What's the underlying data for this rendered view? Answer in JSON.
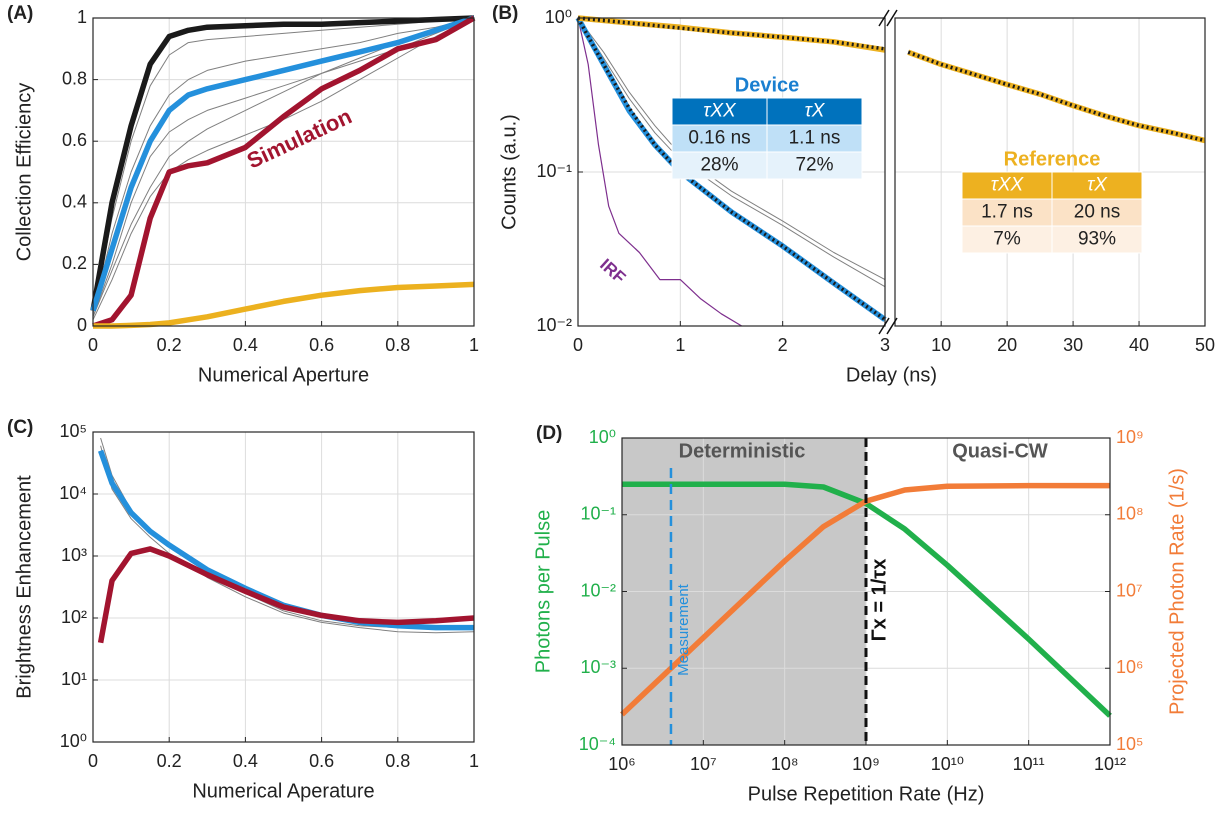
{
  "chart_data": [
    {
      "type": "line",
      "panel_label": "(A)",
      "x_label": "Numerical Aperture",
      "y_label": "Collection Efficiency",
      "xlim": [
        0,
        1
      ],
      "xticks": [
        0,
        0.2,
        0.4,
        0.6,
        0.8,
        1
      ],
      "ylim": [
        0,
        1
      ],
      "yticks": [
        0,
        0.2,
        0.4,
        0.6,
        0.8,
        1
      ],
      "grid": true,
      "annotations": [
        "Simulation"
      ],
      "series": [
        {
          "color": "#808080",
          "x": [
            0,
            0.05,
            0.1,
            0.15,
            0.2,
            0.25,
            0.3,
            0.4,
            0.5,
            0.6,
            0.7,
            0.8,
            0.9,
            1
          ],
          "values": [
            0.04,
            0.35,
            0.6,
            0.78,
            0.88,
            0.92,
            0.93,
            0.94,
            0.95,
            0.96,
            0.97,
            0.98,
            0.99,
            1
          ]
        },
        {
          "color": "#808080",
          "x": [
            0,
            0.05,
            0.1,
            0.15,
            0.2,
            0.25,
            0.3,
            0.4,
            0.5,
            0.6,
            0.7,
            0.8,
            0.9,
            1
          ],
          "values": [
            0.03,
            0.2,
            0.4,
            0.55,
            0.63,
            0.67,
            0.7,
            0.74,
            0.78,
            0.82,
            0.86,
            0.9,
            0.95,
            1
          ]
        },
        {
          "color": "#808080",
          "x": [
            0,
            0.05,
            0.1,
            0.15,
            0.2,
            0.25,
            0.3,
            0.4,
            0.5,
            0.6,
            0.7,
            0.8,
            0.9,
            1
          ],
          "values": [
            0.02,
            0.15,
            0.3,
            0.42,
            0.5,
            0.54,
            0.57,
            0.62,
            0.67,
            0.73,
            0.8,
            0.87,
            0.94,
            1
          ]
        },
        {
          "color": "#808080",
          "x": [
            0,
            0.05,
            0.1,
            0.15,
            0.2,
            0.25,
            0.3,
            0.4,
            0.5,
            0.6,
            0.7,
            0.8,
            0.9,
            1
          ],
          "values": [
            0.04,
            0.3,
            0.5,
            0.65,
            0.75,
            0.8,
            0.83,
            0.86,
            0.88,
            0.9,
            0.92,
            0.95,
            0.97,
            1
          ]
        },
        {
          "color": "#808080",
          "x": [
            0,
            0.05,
            0.1,
            0.15,
            0.2,
            0.25,
            0.3,
            0.4,
            0.5,
            0.6,
            0.7,
            0.8,
            0.9,
            1
          ],
          "values": [
            0.03,
            0.18,
            0.33,
            0.45,
            0.55,
            0.6,
            0.64,
            0.7,
            0.76,
            0.82,
            0.87,
            0.92,
            0.96,
            1
          ]
        },
        {
          "color": "#1a1a1a",
          "x": [
            0,
            0.05,
            0.1,
            0.15,
            0.2,
            0.25,
            0.3,
            0.4,
            0.5,
            0.6,
            0.7,
            0.8,
            0.9,
            1
          ],
          "values": [
            0.05,
            0.4,
            0.65,
            0.85,
            0.94,
            0.96,
            0.97,
            0.975,
            0.98,
            0.98,
            0.985,
            0.99,
            0.995,
            1
          ]
        },
        {
          "color": "#2490dc",
          "x": [
            0,
            0.05,
            0.1,
            0.15,
            0.2,
            0.25,
            0.3,
            0.4,
            0.5,
            0.6,
            0.7,
            0.8,
            0.9,
            1
          ],
          "values": [
            0.05,
            0.25,
            0.45,
            0.6,
            0.7,
            0.75,
            0.77,
            0.8,
            0.83,
            0.86,
            0.89,
            0.92,
            0.96,
            1
          ]
        },
        {
          "color": "#a2142f",
          "x": [
            0,
            0.05,
            0.1,
            0.15,
            0.2,
            0.25,
            0.3,
            0.4,
            0.5,
            0.6,
            0.7,
            0.8,
            0.9,
            1
          ],
          "values": [
            0,
            0.02,
            0.1,
            0.35,
            0.5,
            0.52,
            0.53,
            0.58,
            0.68,
            0.77,
            0.83,
            0.9,
            0.93,
            1
          ]
        },
        {
          "color": "#ecb11f",
          "x": [
            0,
            0.05,
            0.1,
            0.15,
            0.2,
            0.25,
            0.3,
            0.4,
            0.5,
            0.6,
            0.7,
            0.8,
            0.9,
            1
          ],
          "values": [
            0,
            0,
            0.002,
            0.005,
            0.01,
            0.02,
            0.03,
            0.055,
            0.08,
            0.1,
            0.115,
            0.125,
            0.13,
            0.135
          ]
        }
      ]
    },
    {
      "type": "line",
      "panel_label": "(B)",
      "x_label": "Delay (ns)",
      "y_label": "Counts (a.u.)",
      "xlim": [
        0,
        50
      ],
      "xbreak": 3,
      "xticks": [
        0,
        1,
        2,
        3,
        10,
        20,
        30,
        40,
        50
      ],
      "ylog": true,
      "ylim": [
        0.01,
        1
      ],
      "yticks": [
        {
          "value": 0.01,
          "label": "10⁻²"
        },
        {
          "value": 0.1,
          "label": "10⁻¹"
        },
        {
          "value": 1,
          "label": "10⁰"
        }
      ],
      "grid": true,
      "annotations": [
        "IRF"
      ],
      "tables": [
        {
          "title": "Device",
          "header": [
            "τXX",
            "τX"
          ],
          "rows": [
            [
              "0.16 ns",
              "1.1 ns"
            ],
            [
              "28%",
              "72%"
            ]
          ]
        },
        {
          "title": "Reference",
          "header": [
            "τXX",
            "τX"
          ],
          "rows": [
            [
              "1.7 ns",
              "20 ns"
            ],
            [
              "7%",
              "93%"
            ]
          ]
        }
      ],
      "series": [
        {
          "color": "#808080",
          "x": [
            0,
            0.25,
            0.5,
            0.75,
            1,
            1.5,
            2,
            2.5,
            3
          ],
          "values": [
            1,
            0.55,
            0.3,
            0.18,
            0.12,
            0.07,
            0.045,
            0.028,
            0.018
          ]
        },
        {
          "color": "#808080",
          "x": [
            0,
            0.25,
            0.5,
            0.75,
            1,
            1.5,
            2,
            2.5,
            3
          ],
          "values": [
            1,
            0.6,
            0.33,
            0.2,
            0.13,
            0.075,
            0.048,
            0.03,
            0.02
          ]
        },
        {
          "color": "#7e2f8e",
          "x": [
            0,
            0.1,
            0.2,
            0.3,
            0.4,
            0.6,
            0.8,
            1,
            1.2,
            1.4,
            1.6
          ],
          "values": [
            1,
            0.5,
            0.15,
            0.06,
            0.04,
            0.03,
            0.02,
            0.02,
            0.015,
            0.012,
            0.01
          ]
        },
        {
          "color": "#2490dc",
          "x": [
            0,
            0.25,
            0.5,
            0.75,
            1,
            1.5,
            2,
            2.5,
            3
          ],
          "values": [
            1,
            0.5,
            0.25,
            0.15,
            0.1,
            0.055,
            0.033,
            0.019,
            0.011
          ]
        },
        {
          "color": "#1a1a1a",
          "line_style": "dotted",
          "x": [
            0,
            0.25,
            0.5,
            0.75,
            1,
            1.5,
            2,
            2.5,
            3
          ],
          "values": [
            1,
            0.5,
            0.26,
            0.15,
            0.1,
            0.055,
            0.033,
            0.019,
            0.011
          ]
        },
        {
          "color": "#ecb11f",
          "x": [
            0,
            0.5,
            1,
            1.5,
            2,
            2.5,
            3,
            5,
            10,
            15,
            20,
            25,
            30,
            35,
            40,
            45,
            50
          ],
          "values": [
            1,
            0.93,
            0.87,
            0.8,
            0.75,
            0.7,
            0.62,
            0.6,
            0.5,
            0.43,
            0.37,
            0.32,
            0.27,
            0.23,
            0.2,
            0.18,
            0.16
          ]
        },
        {
          "color": "#1a1a1a",
          "line_style": "dotted",
          "x": [
            0,
            0.5,
            1,
            1.5,
            2,
            2.5,
            3,
            5,
            10,
            15,
            20,
            25,
            30,
            35,
            40,
            45,
            50
          ],
          "values": [
            1,
            0.93,
            0.86,
            0.8,
            0.75,
            0.7,
            0.63,
            0.6,
            0.5,
            0.43,
            0.37,
            0.32,
            0.27,
            0.23,
            0.2,
            0.18,
            0.16
          ]
        }
      ]
    },
    {
      "type": "line",
      "panel_label": "(C)",
      "x_label": "Numerical Aperature",
      "y_label": "Brightness Enhancement",
      "xlim": [
        0,
        1
      ],
      "xticks": [
        0,
        0.2,
        0.4,
        0.6,
        0.8,
        1
      ],
      "ylog": true,
      "ylim": [
        1,
        100000
      ],
      "yticks": [
        {
          "value": 1,
          "label": "10⁰"
        },
        {
          "value": 10,
          "label": "10¹"
        },
        {
          "value": 100,
          "label": "10²"
        },
        {
          "value": 1000,
          "label": "10³"
        },
        {
          "value": 10000,
          "label": "10⁴"
        },
        {
          "value": 100000,
          "label": "10⁵"
        }
      ],
      "grid": true,
      "series": [
        {
          "color": "#808080",
          "x": [
            0.02,
            0.05,
            0.1,
            0.15,
            0.2,
            0.3,
            0.4,
            0.5,
            0.6,
            0.7,
            0.8,
            0.9,
            1
          ],
          "values": [
            80000,
            20000,
            5500,
            2600,
            1500,
            550,
            250,
            130,
            90,
            75,
            70,
            68,
            68
          ]
        },
        {
          "color": "#808080",
          "x": [
            0.02,
            0.05,
            0.1,
            0.15,
            0.2,
            0.3,
            0.4,
            0.5,
            0.6,
            0.7,
            0.8,
            0.9,
            1
          ],
          "values": [
            60000,
            12000,
            4000,
            2000,
            1100,
            450,
            220,
            120,
            85,
            70,
            60,
            58,
            60
          ]
        },
        {
          "color": "#2490dc",
          "x": [
            0.02,
            0.05,
            0.1,
            0.15,
            0.2,
            0.3,
            0.4,
            0.5,
            0.6,
            0.7,
            0.8,
            0.9,
            1
          ],
          "values": [
            50000,
            15000,
            5000,
            2500,
            1500,
            600,
            300,
            160,
            110,
            85,
            75,
            70,
            70
          ]
        },
        {
          "color": "#a2142f",
          "x": [
            0.02,
            0.05,
            0.1,
            0.15,
            0.2,
            0.3,
            0.4,
            0.5,
            0.6,
            0.7,
            0.8,
            0.9,
            1
          ],
          "values": [
            40,
            400,
            1100,
            1300,
            1000,
            500,
            270,
            150,
            110,
            90,
            85,
            90,
            100
          ]
        }
      ]
    },
    {
      "type": "line",
      "panel_label": "(D)",
      "x_label": "Pulse Repetition Rate (Hz)",
      "y_label": "Photons per Pulse",
      "y2_label": "Projected Photon Rate (1/s)",
      "xlog": true,
      "xlim": [
        1000000,
        1000000000000
      ],
      "xticks": [
        {
          "value": 1000000,
          "label": "10⁶"
        },
        {
          "value": 10000000,
          "label": "10⁷"
        },
        {
          "value": 100000000,
          "label": "10⁸"
        },
        {
          "value": 1000000000,
          "label": "10⁹"
        },
        {
          "value": 10000000000,
          "label": "10¹⁰"
        },
        {
          "value": 100000000000,
          "label": "10¹¹"
        },
        {
          "value": 1000000000000,
          "label": "10¹²"
        }
      ],
      "ylog": true,
      "ylim": [
        0.0001,
        1
      ],
      "yticks": [
        {
          "value": 0.0001,
          "label": "10⁻⁴"
        },
        {
          "value": 0.001,
          "label": "10⁻³"
        },
        {
          "value": 0.01,
          "label": "10⁻²"
        },
        {
          "value": 0.1,
          "label": "10⁻¹"
        },
        {
          "value": 1,
          "label": "10⁰"
        }
      ],
      "y2log": true,
      "y2lim": [
        100000,
        1000000000
      ],
      "y2ticks": [
        {
          "value": 100000,
          "label": "10⁵"
        },
        {
          "value": 1000000,
          "label": "10⁶"
        },
        {
          "value": 10000000,
          "label": "10⁷"
        },
        {
          "value": 100000000,
          "label": "10⁸"
        },
        {
          "value": 1000000000,
          "label": "10⁹"
        }
      ],
      "grid": true,
      "y_color": "#21b04b",
      "y2_color": "#f27c38",
      "shaded_region": [
        1000000,
        1000000000
      ],
      "measurement_x": 4000000,
      "rate_x": 1000000000,
      "annotations": [
        "Deterministic",
        "Quasi-CW",
        "Measurement",
        "Γx = 1/τx"
      ],
      "series": [
        {
          "color": "#21b04b",
          "x": [
            1000000,
            10000000,
            100000000,
            300000000,
            1000000000,
            3000000000,
            10000000000,
            100000000000,
            1000000000000
          ],
          "values": [
            0.25,
            0.25,
            0.25,
            0.23,
            0.14,
            0.065,
            0.022,
            0.0024,
            0.00024
          ]
        },
        {
          "color": "#f27c38",
          "axis": "y2",
          "x": [
            1000000,
            10000000,
            100000000,
            300000000,
            1000000000,
            3000000000,
            10000000000,
            100000000000,
            1000000000000
          ],
          "values": [
            250000,
            2500000,
            25000000,
            70000000,
            150000000,
            210000000,
            235000000,
            240000000,
            240000000
          ]
        }
      ]
    }
  ]
}
